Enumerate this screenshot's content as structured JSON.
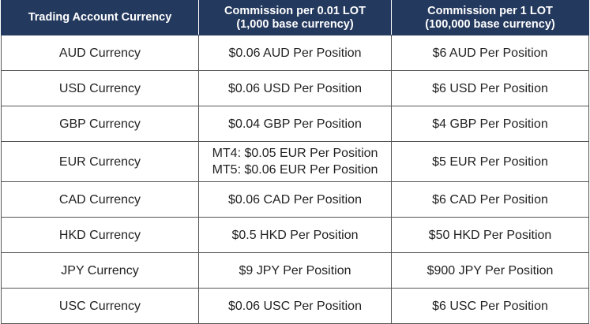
{
  "headers": {
    "col1": "Trading Account Currency",
    "col2_line1": "Commission per 0.01 LOT",
    "col2_line2": "(1,000 base currency)",
    "col3_line1": "Commission per 1 LOT",
    "col3_line2": "(100,000 base currency)"
  },
  "rows": [
    {
      "currency": "AUD Currency",
      "per_001": "$0.06 AUD Per Position",
      "per_1": "$6 AUD Per Position"
    },
    {
      "currency": "USD Currency",
      "per_001": "$0.06 USD Per Position",
      "per_1": "$6 USD Per Position"
    },
    {
      "currency": "GBP Currency",
      "per_001": "$0.04 GBP Per Position",
      "per_1": "$4 GBP Per Position"
    },
    {
      "currency": "EUR Currency",
      "per_001_line1": "MT4: $0.05 EUR Per Position",
      "per_001_line2": "MT5: $0.06 EUR Per Position",
      "per_1": "$5 EUR Per Position"
    },
    {
      "currency": "CAD Currency",
      "per_001": "$0.06 CAD Per Position",
      "per_1": "$6 CAD Per Position"
    },
    {
      "currency": "HKD Currency",
      "per_001": "$0.5 HKD Per Position",
      "per_1": "$50 HKD Per Position"
    },
    {
      "currency": "JPY Currency",
      "per_001": "$9 JPY Per Position",
      "per_1": "$900 JPY Per Position"
    },
    {
      "currency": "USC Currency",
      "per_001": "$0.06 USC Per Position",
      "per_1": "$6 USC Per Position"
    }
  ]
}
